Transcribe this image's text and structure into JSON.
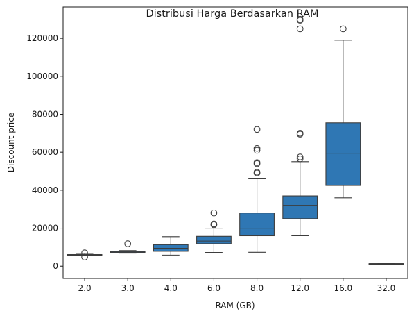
{
  "chart_data": {
    "type": "box",
    "title": "Distribusi Harga Berdasarkan RAM",
    "xlabel": "RAM (GB)",
    "ylabel": "Discount price",
    "categories": [
      "2.0",
      "3.0",
      "4.0",
      "6.0",
      "8.0",
      "12.0",
      "16.0",
      "32.0"
    ],
    "ylim": [
      -6500,
      136500
    ],
    "yticks": [
      0,
      20000,
      40000,
      60000,
      80000,
      100000,
      120000
    ],
    "grid": false,
    "legend": "none",
    "box_color": "#2f77b4",
    "series": [
      {
        "category": "2.0",
        "whisker_low": 5400,
        "q1": 5600,
        "median": 5900,
        "q3": 6100,
        "whisker_high": 6300,
        "outliers": [
          4800,
          7000
        ]
      },
      {
        "category": "3.0",
        "whisker_low": 6800,
        "q1": 7000,
        "median": 7400,
        "q3": 7800,
        "whisker_high": 8200,
        "outliers": [
          11800
        ]
      },
      {
        "category": "4.0",
        "whisker_low": 5800,
        "q1": 7800,
        "median": 9400,
        "q3": 11300,
        "whisker_high": 15500,
        "outliers": []
      },
      {
        "category": "6.0",
        "whisker_low": 7200,
        "q1": 11800,
        "median": 13200,
        "q3": 15700,
        "whisker_high": 20000,
        "outliers": [
          21800,
          22200,
          28000
        ]
      },
      {
        "category": "8.0",
        "whisker_low": 7300,
        "q1": 16000,
        "median": 20000,
        "q3": 28000,
        "whisker_high": 46000,
        "outliers": [
          49000,
          49500,
          54000,
          54500,
          61000,
          62000,
          72000
        ]
      },
      {
        "category": "12.0",
        "whisker_low": 16000,
        "q1": 25000,
        "median": 32000,
        "q3": 37000,
        "whisker_high": 55000,
        "outliers": [
          56500,
          57500,
          69500,
          70000,
          125000,
          129500,
          130000
        ]
      },
      {
        "category": "16.0",
        "whisker_low": 36000,
        "q1": 42500,
        "median": 59500,
        "q3": 75500,
        "whisker_high": 119000,
        "outliers": [
          125000
        ]
      },
      {
        "category": "32.0",
        "whisker_low": 1300,
        "q1": 1300,
        "median": 1300,
        "q3": 1300,
        "whisker_high": 1300,
        "outliers": []
      }
    ]
  }
}
